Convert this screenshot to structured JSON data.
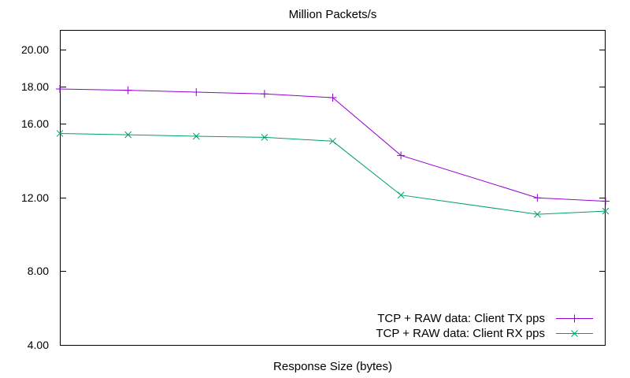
{
  "title": "Million Packets/s",
  "xlabel": "Response Size (bytes)",
  "colors": {
    "background": "#ffffff",
    "axis": "#000000",
    "text": "#000000",
    "series_tx": "#9400d3",
    "series_rx": "#009e73"
  },
  "chart_data": {
    "type": "line",
    "title": "Million Packets/s",
    "xlabel": "Response Size (bytes)",
    "ylabel": "",
    "grid": false,
    "legend_position": "inside-bottom-right",
    "x_tick_labels_shown": false,
    "x_positions": [
      0,
      1,
      2,
      3,
      4,
      5,
      7,
      8
    ],
    "x_range": [
      0,
      8
    ],
    "ylim": [
      4.0,
      21.07
    ],
    "y_ticks": [
      {
        "value": 20.0,
        "label": "20.00"
      },
      {
        "value": 18.0,
        "label": "18.00"
      },
      {
        "value": 16.0,
        "label": "16.00"
      },
      {
        "value": 12.0,
        "label": "12.00"
      },
      {
        "value": 8.0,
        "label": "8.00"
      },
      {
        "value": 4.0,
        "label": "4.00"
      }
    ],
    "series": [
      {
        "name": "TCP + RAW data: Client TX pps",
        "color": "#9400d3",
        "marker": "plus",
        "values": [
          17.87,
          17.8,
          17.7,
          17.6,
          17.4,
          14.27,
          11.97,
          11.79
        ]
      },
      {
        "name": "TCP + RAW data: Client RX pps",
        "color": "#009e73",
        "marker": "cross",
        "values": [
          15.46,
          15.39,
          15.31,
          15.25,
          15.04,
          12.12,
          11.08,
          11.25
        ]
      }
    ]
  }
}
